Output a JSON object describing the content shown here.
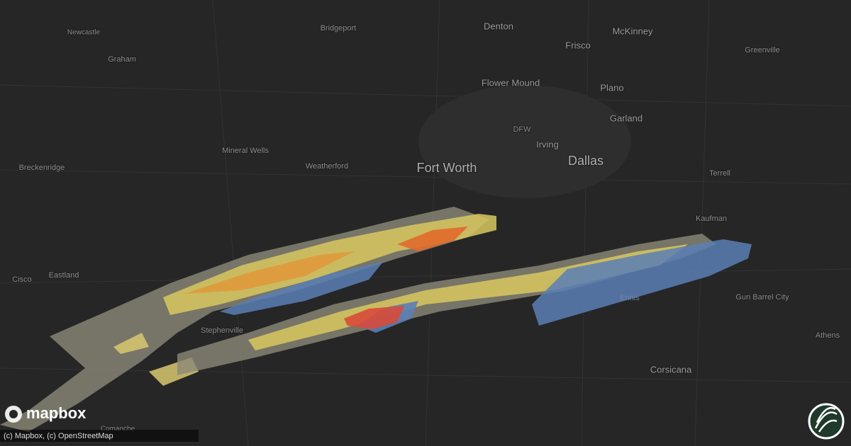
{
  "map": {
    "labels": [
      "Newcastle",
      "Bridgeport",
      "Denton",
      "McKinney",
      "Frisco",
      "Greenville",
      "Graham",
      "Flower Mound",
      "Plano",
      "Garland",
      "DFW",
      "Irving",
      "Mineral Wells",
      "Breckenridge",
      "Weatherford",
      "Fort Worth",
      "Dallas",
      "Terrell",
      "Kaufman",
      "Cisco",
      "Eastland",
      "Stephenville",
      "Ennis",
      "Gun Barrel City",
      "Athens",
      "Corsicana",
      "Comanche"
    ],
    "logo": "mapbox",
    "attribution": "(c) Mapbox, (c) OpenStreetMap"
  }
}
